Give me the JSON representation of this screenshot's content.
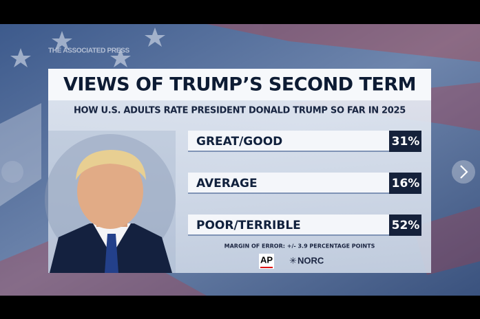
{
  "watermark": "THE ASSOCIATED PRESS",
  "graphic": {
    "title": "VIEWS OF TRUMP’S SECOND TERM",
    "subtitle": "HOW U.S. ADULTS RATE PRESIDENT DONALD TRUMP SO FAR IN 2025",
    "rows": [
      {
        "label": "GREAT/GOOD",
        "value": "31%"
      },
      {
        "label": "AVERAGE",
        "value": "16%"
      },
      {
        "label": "POOR/TERRIBLE",
        "value": "52%"
      }
    ],
    "note": "MARGIN OF ERROR: +/- 3.9 PERCENTAGE POINTS",
    "logos": [
      "AP",
      "NORC"
    ]
  }
}
